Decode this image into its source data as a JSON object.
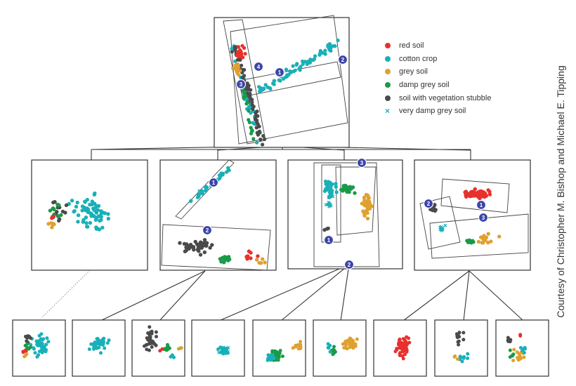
{
  "legend": {
    "items": [
      {
        "label": "red soil",
        "color": "#e8302c",
        "marker": "dot"
      },
      {
        "label": "cotton crop",
        "color": "#18b0b8",
        "marker": "dot"
      },
      {
        "label": "grey soil",
        "color": "#e0a030",
        "marker": "dot"
      },
      {
        "label": "damp grey soil",
        "color": "#1a9a48",
        "marker": "dot"
      },
      {
        "label": "soil with vegetation stubble",
        "color": "#4a4a4a",
        "marker": "dot"
      },
      {
        "label": "very damp grey soil",
        "color": "#18b0b8",
        "marker": "cross"
      }
    ]
  },
  "credit": "Courtesy of Christopher M. Bishop and Michael E. Tipping",
  "badges": {
    "top": [
      "1",
      "2",
      "3",
      "4"
    ],
    "mid2": [
      "1",
      "2"
    ],
    "mid3": [
      "1",
      "2",
      "3"
    ],
    "mid4": [
      "1",
      "2",
      "3"
    ]
  }
}
